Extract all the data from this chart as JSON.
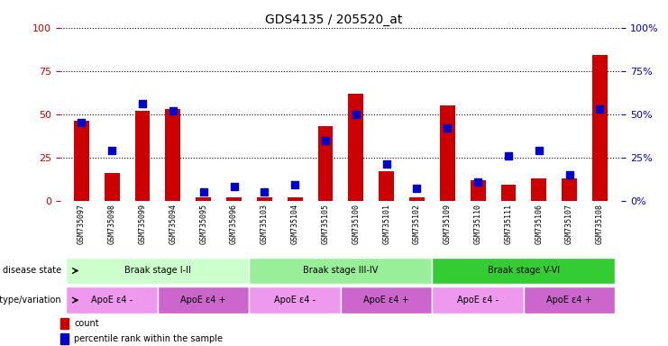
{
  "title": "GDS4135 / 205520_at",
  "samples": [
    "GSM735097",
    "GSM735098",
    "GSM735099",
    "GSM735094",
    "GSM735095",
    "GSM735096",
    "GSM735103",
    "GSM735104",
    "GSM735105",
    "GSM735100",
    "GSM735101",
    "GSM735102",
    "GSM735109",
    "GSM735110",
    "GSM735111",
    "GSM735106",
    "GSM735107",
    "GSM735108"
  ],
  "counts": [
    46,
    16,
    52,
    53,
    2,
    2,
    2,
    2,
    43,
    62,
    17,
    2,
    55,
    12,
    9,
    13,
    13,
    84
  ],
  "percentiles": [
    45,
    29,
    56,
    52,
    5,
    8,
    5,
    9,
    35,
    50,
    21,
    7,
    42,
    11,
    26,
    29,
    15,
    53
  ],
  "bar_color": "#cc0000",
  "dot_color": "#0000cc",
  "ylim_left": [
    0,
    100
  ],
  "ylim_right": [
    0,
    100
  ],
  "yticks_left": [
    0,
    25,
    50,
    75,
    100
  ],
  "yticks_right": [
    0,
    25,
    50,
    75,
    100
  ],
  "ylabel_left_color": "#cc0000",
  "ylabel_right_color": "#0000cc",
  "disease_state_groups": [
    {
      "label": "Braak stage I-II",
      "start": 0,
      "end": 6,
      "color": "#ccffcc"
    },
    {
      "label": "Braak stage III-IV",
      "start": 6,
      "end": 12,
      "color": "#99ee99"
    },
    {
      "label": "Braak stage V-VI",
      "start": 12,
      "end": 18,
      "color": "#33cc33"
    }
  ],
  "genotype_groups": [
    {
      "label": "ApoE ε4 -",
      "start": 0,
      "end": 3,
      "color": "#ee99ee"
    },
    {
      "label": "ApoE ε4 +",
      "start": 3,
      "end": 6,
      "color": "#cc66cc"
    },
    {
      "label": "ApoE ε4 -",
      "start": 6,
      "end": 9,
      "color": "#ee99ee"
    },
    {
      "label": "ApoE ε4 +",
      "start": 9,
      "end": 12,
      "color": "#cc66cc"
    },
    {
      "label": "ApoE ε4 -",
      "start": 12,
      "end": 15,
      "color": "#ee99ee"
    },
    {
      "label": "ApoE ε4 +",
      "start": 15,
      "end": 18,
      "color": "#cc66cc"
    }
  ],
  "legend_count_label": "count",
  "legend_pct_label": "percentile rank within the sample",
  "disease_state_label": "disease state",
  "genotype_label": "genotype/variation",
  "background_color": "#ffffff",
  "plot_bg_color": "#ffffff",
  "grid_color": "#000000",
  "tick_label_color": "#808080",
  "bar_width": 0.5,
  "dot_size": 8
}
